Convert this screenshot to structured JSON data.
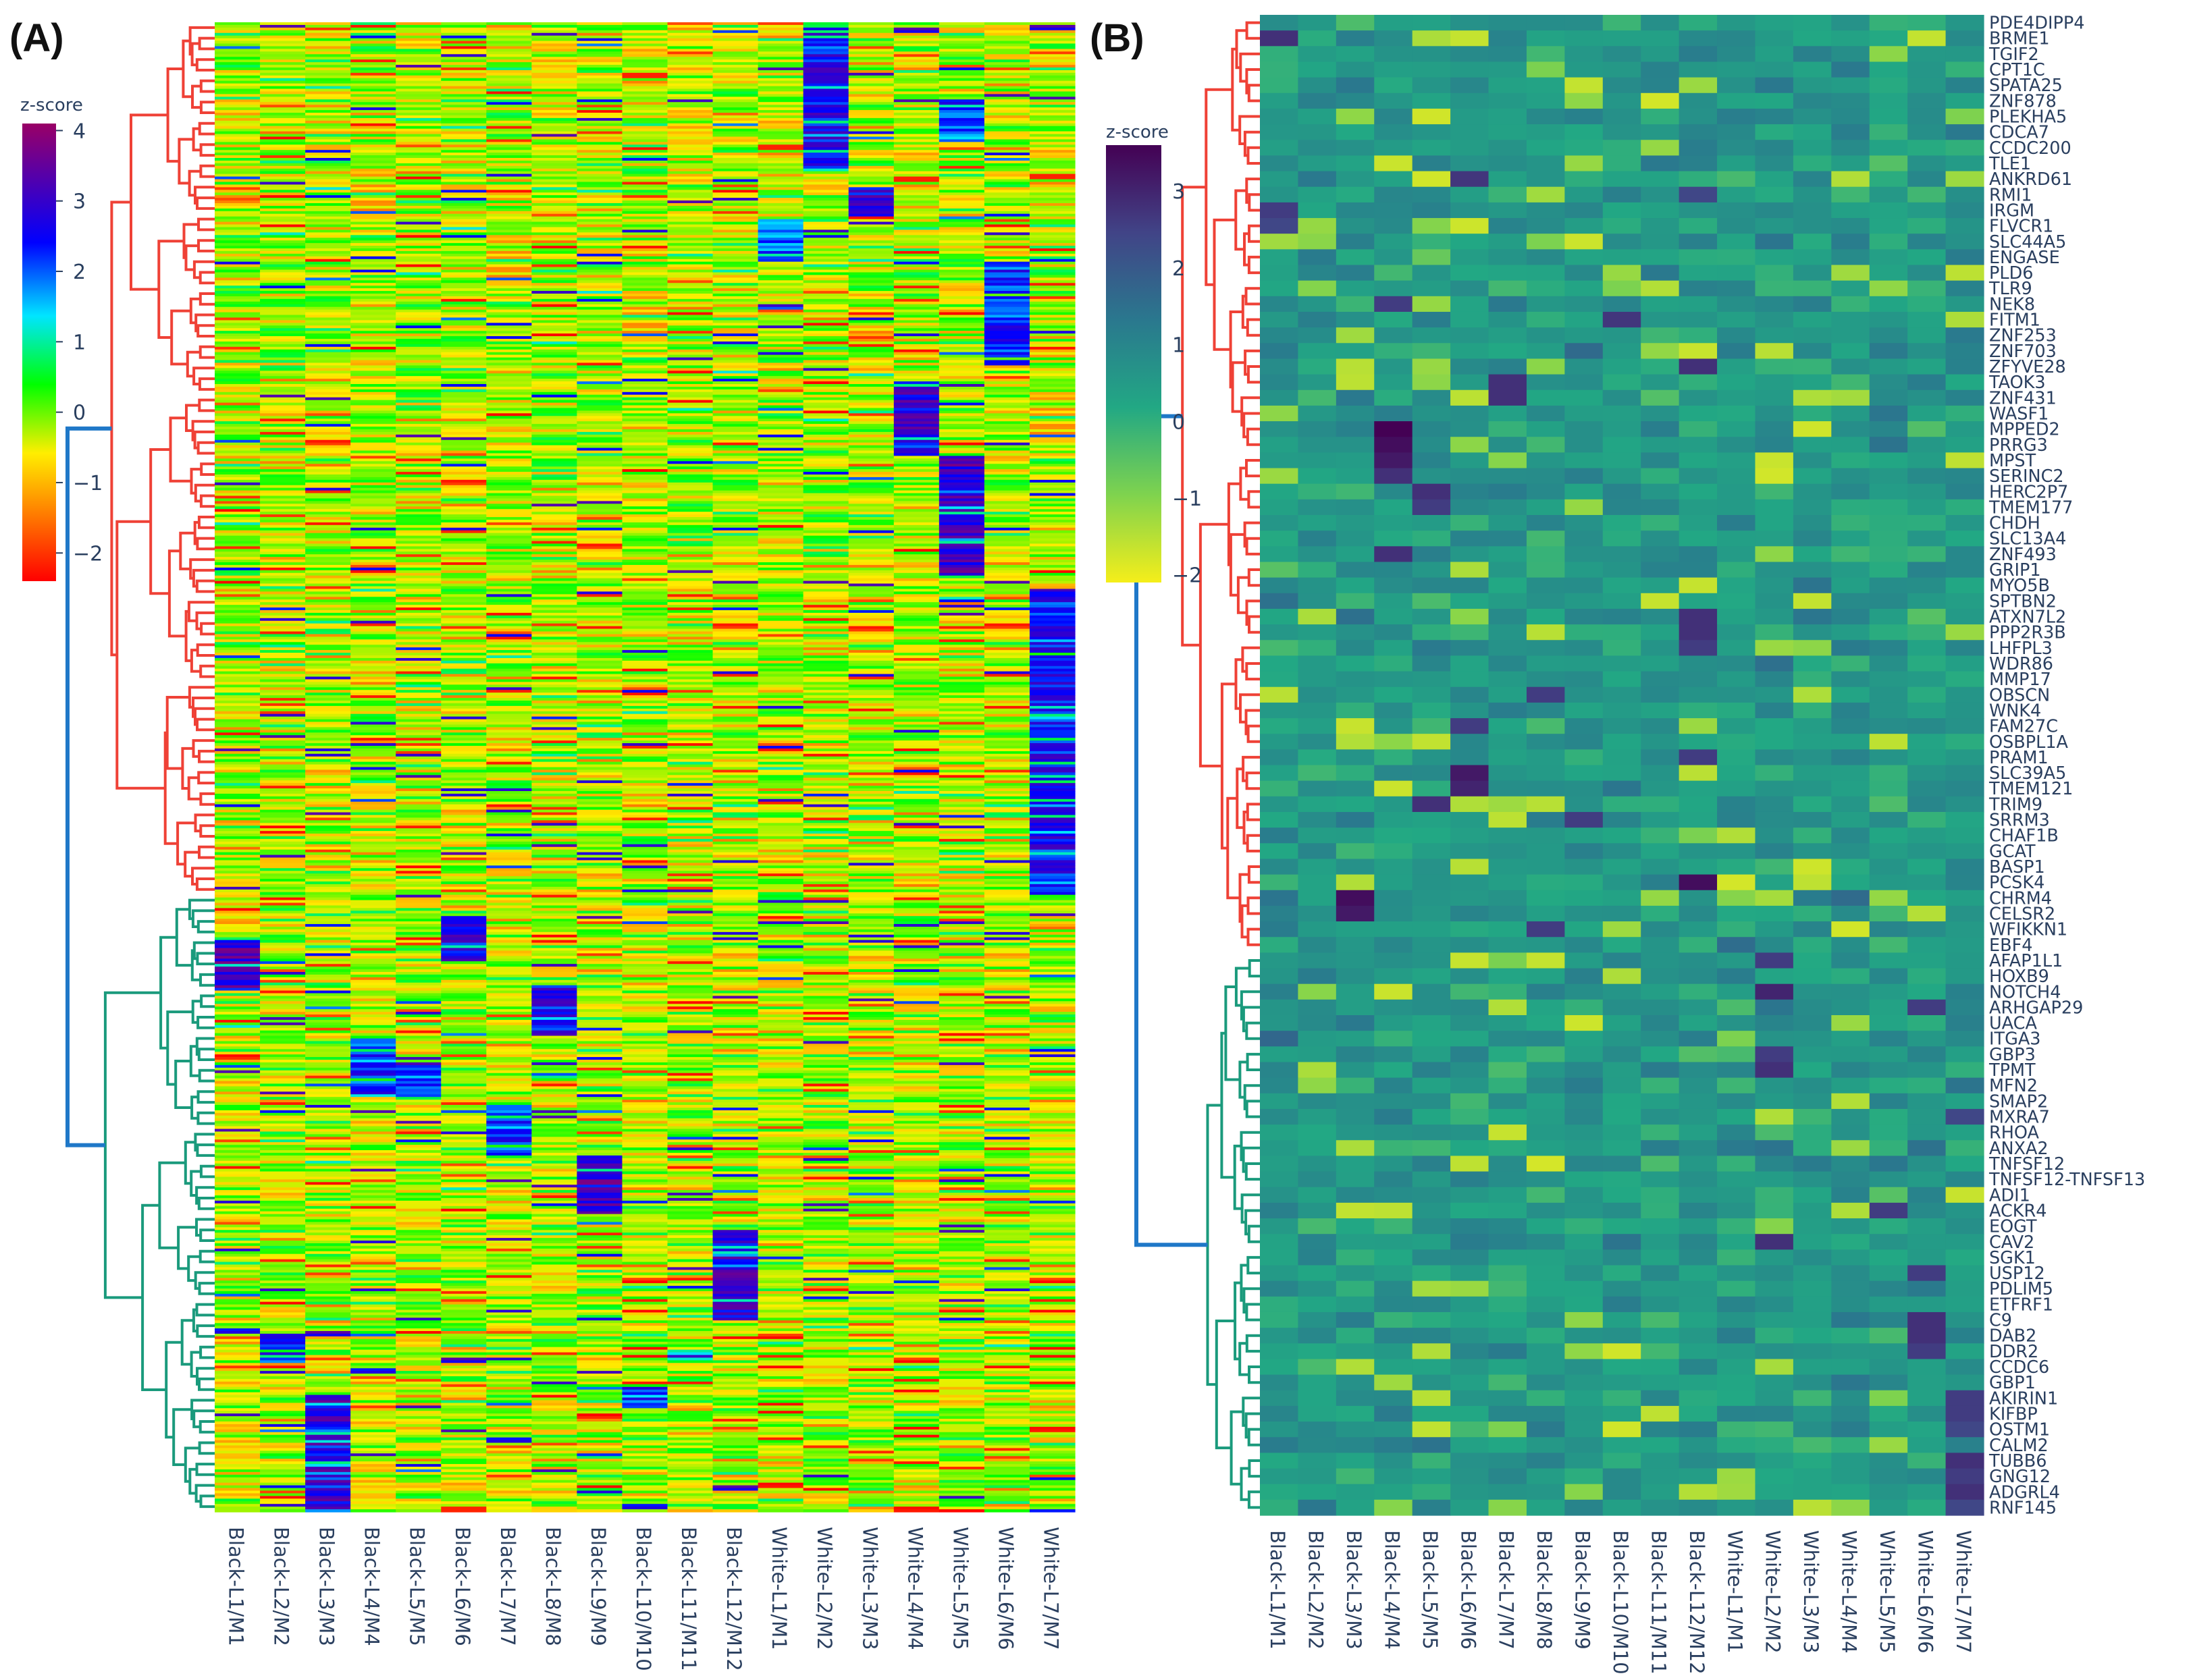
{
  "panels": {
    "a": {
      "label": "(A)"
    },
    "b": {
      "label": "(B)"
    }
  },
  "colors": {
    "cluster_top": "#ef4136",
    "cluster_bottom": "#1a9a7c",
    "cluster_link": "#1f78c8"
  },
  "chart_data": [
    {
      "type": "heatmap",
      "panel": "(A)",
      "colorbar": {
        "title": "z-score",
        "range": [
          -2.4,
          4.1
        ],
        "ticks": [
          4,
          3,
          2,
          1,
          0,
          -1,
          -2
        ],
        "tick_labels": [
          "4",
          "3",
          "2",
          "1",
          "0",
          "−1",
          "−2"
        ],
        "colorscale": "jet-like (red → yellow → green → cyan → blue → magenta)"
      },
      "columns": [
        "Black-L1/M1",
        "Black-L2/M2",
        "Black-L3/M3",
        "Black-L4/M4",
        "Black-L5/M5",
        "Black-L6/M6",
        "Black-L7/M7",
        "Black-L8/M8",
        "Black-L9/M9",
        "Black-L10/M10",
        "Black-L11/M11",
        "Black-L12/M12",
        "White-L1/M1",
        "White-L2/M2",
        "White-L3/M3",
        "White-L4/M4",
        "White-L5/M5",
        "White-L6/M6",
        "White-L7/M7"
      ],
      "row_count": 560,
      "row_clusters": [
        {
          "color": "red",
          "fraction": 0.585
        },
        {
          "color": "green",
          "fraction": 0.415
        }
      ],
      "high_blocks": [
        {
          "column": "White-L2/M2",
          "rows": [
            0.0,
            0.1
          ],
          "z": 3.3
        },
        {
          "column": "White-L1/M1",
          "rows": [
            0.13,
            0.16
          ],
          "z": 2.8
        },
        {
          "column": "White-L3/M3",
          "rows": [
            0.11,
            0.13
          ],
          "z": 3.5
        },
        {
          "column": "White-L6/M6",
          "rows": [
            0.16,
            0.23
          ],
          "z": 2.9
        },
        {
          "column": "White-L4/M4",
          "rows": [
            0.24,
            0.29
          ],
          "z": 3.6
        },
        {
          "column": "White-L5/M5",
          "rows": [
            0.29,
            0.37
          ],
          "z": 3.8
        },
        {
          "column": "White-L5/M5",
          "rows": [
            0.055,
            0.08
          ],
          "z": 2.6
        },
        {
          "column": "White-L7/M7",
          "rows": [
            0.38,
            0.585
          ],
          "z": 3.2
        },
        {
          "column": "Black-L1/M1",
          "rows": [
            0.615,
            0.65
          ],
          "z": 3.8
        },
        {
          "column": "Black-L8/M8",
          "rows": [
            0.645,
            0.68
          ],
          "z": 3.2
        },
        {
          "column": "Black-L4/M4",
          "rows": [
            0.68,
            0.72
          ],
          "z": 3.0
        },
        {
          "column": "Black-L5/M5",
          "rows": [
            0.7,
            0.72
          ],
          "z": 2.8
        },
        {
          "column": "Black-L6/M6",
          "rows": [
            0.6,
            0.63
          ],
          "z": 3.3
        },
        {
          "column": "Black-L7/M7",
          "rows": [
            0.725,
            0.76
          ],
          "z": 3.0
        },
        {
          "column": "Black-L9/M9",
          "rows": [
            0.76,
            0.8
          ],
          "z": 3.8
        },
        {
          "column": "Black-L12/M12",
          "rows": [
            0.81,
            0.87
          ],
          "z": 3.6
        },
        {
          "column": "Black-L2/M2",
          "rows": [
            0.88,
            0.9
          ],
          "z": 3.0
        },
        {
          "column": "Black-L10/M10",
          "rows": [
            0.915,
            0.93
          ],
          "z": 3.0
        },
        {
          "column": "Black-L11/M11",
          "rows": [
            0.89,
            0.9
          ],
          "z": 3.2
        },
        {
          "column": "Black-L3/M3",
          "rows": [
            0.92,
            1.0
          ],
          "z": 3.6
        }
      ]
    },
    {
      "type": "heatmap",
      "panel": "(B)",
      "colorbar": {
        "title": "z-score",
        "range": [
          -2.1,
          3.6
        ],
        "ticks": [
          3,
          2,
          1,
          0,
          -1,
          -2
        ],
        "tick_labels": [
          "3",
          "2",
          "1",
          "0",
          "−1",
          "−2"
        ],
        "colorscale": "viridis-like (yellow → green → teal → blue → purple)"
      },
      "columns": [
        "Black-L1/M1",
        "Black-L2/M2",
        "Black-L3/M3",
        "Black-L4/M4",
        "Black-L5/M5",
        "Black-L6/M6",
        "Black-L7/M7",
        "Black-L8/M8",
        "Black-L9/M9",
        "Black-L10/M10",
        "Black-L11/M11",
        "Black-L12/M12",
        "White-L1/M1",
        "White-L2/M2",
        "White-L3/M3",
        "White-L4/M4",
        "White-L5/M5",
        "White-L6/M6",
        "White-L7/M7"
      ],
      "genes": [
        "PDE4DIPP4",
        "BRME1",
        "TGIF2",
        "CPT1C",
        "SPATA25",
        "ZNF878",
        "PLEKHA5",
        "CDCA7",
        "CCDC200",
        "TLE1",
        "ANKRD61",
        "RMI1",
        "IRGM",
        "FLVCR1",
        "SLC44A5",
        "ENGASE",
        "PLD6",
        "TLR9",
        "NEK8",
        "FITM1",
        "ZNF253",
        "ZNF703",
        "ZFYVE28",
        "TAOK3",
        "ZNF431",
        "WASF1",
        "MPPED2",
        "PRRG3",
        "MPST",
        "SERINC2",
        "HERC2P7",
        "TMEM177",
        "CHDH",
        "SLC13A4",
        "ZNF493",
        "GRIP1",
        "MYO5B",
        "SPTBN2",
        "ATXN7L2",
        "PPP2R3B",
        "LHFPL3",
        "WDR86",
        "MMP17",
        "OBSCN",
        "WNK4",
        "FAM27C",
        "OSBPL1A",
        "PRAM1",
        "SLC39A5",
        "TMEM121",
        "TRIM9",
        "SRRM3",
        "CHAF1B",
        "GCAT",
        "BASP1",
        "PCSK4",
        "CHRM4",
        "CELSR2",
        "WFIKKN1",
        "EBF4",
        "AFAP1L1",
        "HOXB9",
        "NOTCH4",
        "ARHGAP29",
        "UACA",
        "ITGA3",
        "GBP3",
        "TPMT",
        "MFN2",
        "SMAP2",
        "MXRA7",
        "RHOA",
        "ANXA2",
        "TNFSF12",
        "TNFSF12-TNFSF13",
        "ADI1",
        "ACKR4",
        "EOGT",
        "CAV2",
        "SGK1",
        "USP12",
        "PDLIM5",
        "ETFRF1",
        "C9",
        "DAB2",
        "DDR2",
        "CCDC6",
        "GBP1",
        "AKIRIN1",
        "KIFBP",
        "OSTM1",
        "CALM2",
        "TUBB6",
        "GNG12",
        "ADGRL4",
        "RNF145"
      ],
      "row_clusters": [
        {
          "color": "red",
          "rows": 60
        },
        {
          "color": "green",
          "rows": 36
        }
      ],
      "high_cells": [
        {
          "gene": "BRME1",
          "column": "Black-L1/M1",
          "z": 2.8
        },
        {
          "gene": "IRGM",
          "column": "Black-L1/M1",
          "z": 2.6
        },
        {
          "gene": "FLVCR1",
          "column": "Black-L1/M1",
          "z": 2.4
        },
        {
          "gene": "ANKRD61",
          "column": "Black-L6/M6",
          "z": 2.7
        },
        {
          "gene": "RMI1",
          "column": "Black-L12/M12",
          "z": 2.4
        },
        {
          "gene": "NEK8",
          "column": "Black-L4/M4",
          "z": 2.6
        },
        {
          "gene": "FITM1",
          "column": "Black-L10/M10",
          "z": 2.7
        },
        {
          "gene": "ZFYVE28",
          "column": "Black-L12/M12",
          "z": 2.8
        },
        {
          "gene": "TAOK3",
          "column": "Black-L7/M7",
          "z": 2.8
        },
        {
          "gene": "ZNF431",
          "column": "Black-L7/M7",
          "z": 2.8
        },
        {
          "gene": "MPPED2",
          "column": "Black-L4/M4",
          "z": 3.6
        },
        {
          "gene": "PRRG3",
          "column": "Black-L4/M4",
          "z": 3.4
        },
        {
          "gene": "MPST",
          "column": "Black-L4/M4",
          "z": 3.2
        },
        {
          "gene": "SERINC2",
          "column": "Black-L4/M4",
          "z": 2.8
        },
        {
          "gene": "HERC2P7",
          "column": "Black-L5/M5",
          "z": 2.8
        },
        {
          "gene": "TMEM177",
          "column": "Black-L5/M5",
          "z": 2.6
        },
        {
          "gene": "ZNF493",
          "column": "Black-L4/M4",
          "z": 2.8
        },
        {
          "gene": "ATXN7L2",
          "column": "Black-L12/M12",
          "z": 2.8
        },
        {
          "gene": "PPP2R3B",
          "column": "Black-L12/M12",
          "z": 2.8
        },
        {
          "gene": "LHFPL3",
          "column": "Black-L12/M12",
          "z": 2.6
        },
        {
          "gene": "OBSCN",
          "column": "Black-L8/M8",
          "z": 2.6
        },
        {
          "gene": "FAM27C",
          "column": "Black-L6/M6",
          "z": 2.6
        },
        {
          "gene": "PRAM1",
          "column": "Black-L12/M12",
          "z": 2.6
        },
        {
          "gene": "SLC39A5",
          "column": "Black-L6/M6",
          "z": 3.2
        },
        {
          "gene": "TMEM121",
          "column": "Black-L6/M6",
          "z": 3.0
        },
        {
          "gene": "TRIM9",
          "column": "Black-L5/M5",
          "z": 2.8
        },
        {
          "gene": "SRRM3",
          "column": "Black-L9/M9",
          "z": 2.6
        },
        {
          "gene": "PCSK4",
          "column": "Black-L12/M12",
          "z": 3.4
        },
        {
          "gene": "CHRM4",
          "column": "Black-L3/M3",
          "z": 3.4
        },
        {
          "gene": "CELSR2",
          "column": "Black-L3/M3",
          "z": 3.2
        },
        {
          "gene": "WFIKKN1",
          "column": "Black-L8/M8",
          "z": 2.6
        },
        {
          "gene": "AFAP1L1",
          "column": "White-L2/M2",
          "z": 2.6
        },
        {
          "gene": "NOTCH4",
          "column": "White-L2/M2",
          "z": 3.0
        },
        {
          "gene": "ARHGAP29",
          "column": "White-L6/M6",
          "z": 2.6
        },
        {
          "gene": "GBP3",
          "column": "White-L2/M2",
          "z": 2.6
        },
        {
          "gene": "TPMT",
          "column": "White-L2/M2",
          "z": 2.8
        },
        {
          "gene": "MXRA7",
          "column": "White-L7/M7",
          "z": 2.4
        },
        {
          "gene": "ACKR4",
          "column": "White-L5/M5",
          "z": 2.6
        },
        {
          "gene": "CAV2",
          "column": "White-L2/M2",
          "z": 2.8
        },
        {
          "gene": "USP12",
          "column": "White-L6/M6",
          "z": 2.6
        },
        {
          "gene": "C9",
          "column": "White-L6/M6",
          "z": 2.8
        },
        {
          "gene": "DAB2",
          "column": "White-L6/M6",
          "z": 2.8
        },
        {
          "gene": "DDR2",
          "column": "White-L6/M6",
          "z": 2.6
        },
        {
          "gene": "AKIRIN1",
          "column": "White-L7/M7",
          "z": 2.6
        },
        {
          "gene": "KIFBP",
          "column": "White-L7/M7",
          "z": 2.6
        },
        {
          "gene": "OSTM1",
          "column": "White-L7/M7",
          "z": 2.4
        },
        {
          "gene": "TUBB6",
          "column": "White-L7/M7",
          "z": 2.8
        },
        {
          "gene": "GNG12",
          "column": "White-L7/M7",
          "z": 2.6
        },
        {
          "gene": "ADGRL4",
          "column": "White-L7/M7",
          "z": 2.8
        },
        {
          "gene": "RNF145",
          "column": "White-L7/M7",
          "z": 2.4
        }
      ]
    }
  ]
}
